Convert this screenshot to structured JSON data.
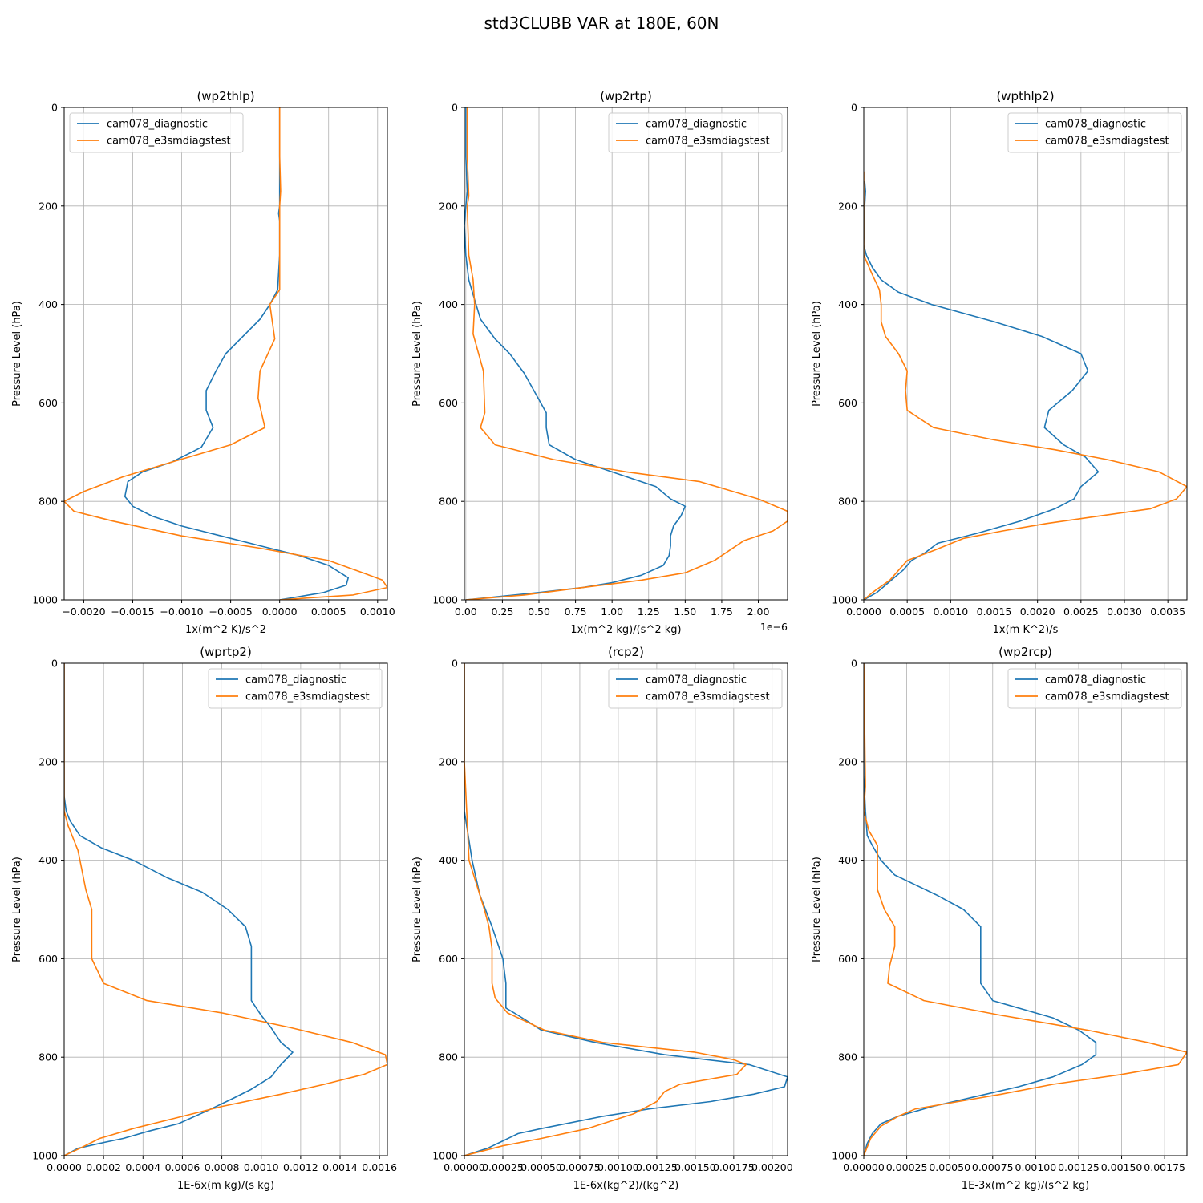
{
  "suptitle": "std3CLUBB VAR at 180E, 60N",
  "colors": {
    "diagnostic": "#1f77b4",
    "e3smdiagstest": "#ff7f0e",
    "grid": "#b0b0b0"
  },
  "chart_data": [
    {
      "type": "line",
      "title": "(wp2thlp)",
      "xlabel": "1x(m^2 K)/s^2",
      "ylabel": "Pressure Level (hPa)",
      "xlim": [
        -0.0022,
        0.0011
      ],
      "ylim": [
        1000,
        0
      ],
      "xticks": [
        -0.002,
        -0.0015,
        -0.001,
        -0.0005,
        0.0,
        0.0005,
        0.001
      ],
      "xtick_labels": [
        "−0.0020",
        "−0.0015",
        "−0.0010",
        "−0.0005",
        "0.0000",
        "0.0005",
        "0.0010"
      ],
      "yticks": [
        0,
        200,
        400,
        600,
        800,
        1000
      ],
      "ytick_labels": [
        "0",
        "200",
        "400",
        "600",
        "800",
        "1000"
      ],
      "legend_loc": "upper left",
      "series": [
        {
          "name": "cam078_diagnostic",
          "x": [
            0.0,
            0.0,
            0.0,
            -1e-05,
            0.0,
            0.0,
            -2e-05,
            -0.0001,
            -0.0002,
            -0.0004,
            -0.00055,
            -0.00065,
            -0.00075,
            -0.00075,
            -0.00068,
            -0.0008,
            -0.0011,
            -0.0014,
            -0.00155,
            -0.00158,
            -0.0015,
            -0.0013,
            -0.001,
            -0.0006,
            -0.0002,
            0.0002,
            0.0005,
            0.0007,
            0.00068,
            0.00045,
            0.0
          ],
          "y": [
            0,
            100,
            200,
            215,
            230,
            300,
            370,
            400,
            430,
            470,
            500,
            535,
            575,
            615,
            650,
            690,
            720,
            740,
            760,
            790,
            810,
            830,
            850,
            870,
            890,
            910,
            930,
            955,
            970,
            985,
            1000
          ]
        },
        {
          "name": "cam078_e3smdiagstest",
          "x": [
            0.0,
            0.0,
            1e-05,
            0.0,
            0.0,
            0.0,
            -0.0001,
            -5e-05,
            -0.0002,
            -0.00022,
            -0.00015,
            -0.0005,
            -0.0011,
            -0.0016,
            -0.002,
            -0.0022,
            -0.0021,
            -0.0017,
            -0.001,
            -0.0002,
            0.0005,
            0.00085,
            0.00105,
            0.0011,
            0.00075,
            0.0
          ],
          "y": [
            0,
            100,
            170,
            200,
            300,
            370,
            400,
            470,
            535,
            590,
            650,
            685,
            720,
            750,
            780,
            800,
            820,
            840,
            870,
            895,
            920,
            945,
            960,
            975,
            990,
            1000
          ]
        }
      ]
    },
    {
      "type": "line",
      "title": "(wp2rtp)",
      "xlabel": "1x(m^2 kg)/(s^2 kg)",
      "ylabel": "Pressure Level (hPa)",
      "offset_text": "1e−6",
      "xlim": [
        -1e-08,
        2.2e-06
      ],
      "ylim": [
        1000,
        0
      ],
      "xticks": [
        0.0,
        2.5e-07,
        5e-07,
        7.5e-07,
        1e-06,
        1.25e-06,
        1.5e-06,
        1.75e-06,
        2e-06
      ],
      "xtick_labels": [
        "0.00",
        "0.25",
        "0.50",
        "0.75",
        "1.00",
        "1.25",
        "1.50",
        "1.75",
        "2.00"
      ],
      "yticks": [
        0,
        200,
        400,
        600,
        800,
        1000
      ],
      "ytick_labels": [
        "0",
        "200",
        "400",
        "600",
        "800",
        "1000"
      ],
      "legend_loc": "upper right",
      "series": [
        {
          "name": "cam078_diagnostic",
          "x": [
            0.0,
            0.0,
            1e-08,
            0.0,
            -1e-08,
            0.0,
            2e-08,
            5e-08,
            1e-07,
            2e-07,
            3e-07,
            4e-07,
            5.5e-07,
            5.5e-07,
            5.7e-07,
            7.5e-07,
            1e-06,
            1.3e-06,
            1.4e-06,
            1.5e-06,
            1.47e-06,
            1.42e-06,
            1.4e-06,
            1.4e-06,
            1.39e-06,
            1.35e-06,
            1.2e-06,
            1e-06,
            8e-07,
            5e-07,
            0.0
          ],
          "y": [
            0,
            100,
            170,
            200,
            240,
            300,
            350,
            380,
            430,
            470,
            500,
            540,
            620,
            650,
            685,
            715,
            740,
            770,
            795,
            810,
            830,
            850,
            870,
            890,
            910,
            930,
            950,
            965,
            975,
            985,
            1000
          ]
        },
        {
          "name": "cam078_e3smdiagstest",
          "x": [
            1e-08,
            1e-08,
            2e-08,
            1e-08,
            2e-08,
            5e-08,
            6e-08,
            5e-08,
            1.2e-07,
            1.3e-07,
            1e-07,
            2e-07,
            6e-07,
            1.1e-06,
            1.6e-06,
            2e-06,
            2.2e-06,
            2.2e-06,
            2.1e-06,
            1.9e-06,
            1.8e-06,
            1.7e-06,
            1.5e-06,
            1.2e-06,
            8e-07,
            4e-07,
            0.0
          ],
          "y": [
            0,
            100,
            180,
            200,
            300,
            350,
            400,
            460,
            535,
            620,
            650,
            685,
            715,
            740,
            760,
            795,
            820,
            840,
            860,
            880,
            900,
            920,
            945,
            960,
            975,
            990,
            1000
          ]
        }
      ]
    },
    {
      "type": "line",
      "title": "(wpthlp2)",
      "xlabel": "1x(m K^2)/s",
      "ylabel": "Pressure Level (hPa)",
      "xlim": [
        0.0,
        0.00372
      ],
      "ylim": [
        1000,
        0
      ],
      "xticks": [
        0.0,
        0.0005,
        0.001,
        0.0015,
        0.002,
        0.0025,
        0.003,
        0.0035
      ],
      "xtick_labels": [
        "0.0000",
        "0.0005",
        "0.0010",
        "0.0015",
        "0.0020",
        "0.0025",
        "0.0030",
        "0.0035"
      ],
      "yticks": [
        0,
        200,
        400,
        600,
        800,
        1000
      ],
      "ytick_labels": [
        "0",
        "200",
        "400",
        "600",
        "800",
        "1000"
      ],
      "legend_loc": "upper right",
      "series": [
        {
          "name": "cam078_diagnostic",
          "x": [
            1e-05,
            2e-05,
            1e-05,
            0.0,
            3e-05,
            0.0001,
            0.0002,
            0.0004,
            0.00078,
            0.0015,
            0.00205,
            0.0025,
            0.00258,
            0.0024,
            0.00213,
            0.00208,
            0.0023,
            0.00255,
            0.0027,
            0.0025,
            0.00242,
            0.0022,
            0.0018,
            0.0013,
            0.00085,
            0.0007,
            0.00055,
            0.00045,
            0.00035,
            0.00025,
            0.00015,
            5e-05,
            0.0
          ],
          "y": [
            150,
            170,
            200,
            280,
            300,
            325,
            350,
            375,
            400,
            435,
            465,
            500,
            535,
            575,
            615,
            650,
            685,
            710,
            740,
            770,
            795,
            815,
            840,
            865,
            885,
            905,
            920,
            940,
            955,
            970,
            985,
            995,
            1000
          ]
        },
        {
          "name": "cam078_e3smdiagstest",
          "x": [
            0.0,
            0.0,
            0.0,
            0.0001,
            0.00018,
            0.0002,
            0.0002,
            0.00025,
            0.0004,
            0.0005,
            0.00048,
            0.0005,
            0.0008,
            0.0015,
            0.0022,
            0.0028,
            0.0034,
            0.00372,
            0.0036,
            0.0033,
            0.0027,
            0.0021,
            0.0016,
            0.00115,
            0.0008,
            0.0005,
            0.0004,
            0.0003,
            0.0001,
            0.0
          ],
          "y": [
            130,
            200,
            300,
            340,
            370,
            400,
            435,
            465,
            500,
            535,
            575,
            615,
            650,
            675,
            695,
            715,
            740,
            770,
            795,
            815,
            830,
            845,
            860,
            875,
            900,
            920,
            940,
            960,
            985,
            1000
          ]
        }
      ]
    },
    {
      "type": "line",
      "title": "(wprtp2)",
      "xlabel": "1E-6x(m kg)/(s kg)",
      "ylabel": "Pressure Level (hPa)",
      "xlim": [
        0.0,
        0.00164
      ],
      "ylim": [
        1000,
        0
      ],
      "xticks": [
        0.0,
        0.0002,
        0.0004,
        0.0006,
        0.0008,
        0.001,
        0.0012,
        0.0014,
        0.0016
      ],
      "xtick_labels": [
        "0.0000",
        "0.0002",
        "0.0004",
        "0.0006",
        "0.0008",
        "0.0010",
        "0.0012",
        "0.0014",
        "0.0016"
      ],
      "yticks": [
        0,
        200,
        400,
        600,
        800,
        1000
      ],
      "ytick_labels": [
        "0",
        "200",
        "400",
        "600",
        "800",
        "1000"
      ],
      "legend_loc": "upper right",
      "series": [
        {
          "name": "cam078_diagnostic",
          "x": [
            0.0,
            0.0,
            0.0,
            1e-05,
            3e-05,
            8e-05,
            0.00019,
            0.00035,
            0.00052,
            0.0007,
            0.00083,
            0.00092,
            0.00095,
            0.00095,
            0.00095,
            0.00095,
            0.001,
            0.00105,
            0.0011,
            0.00116,
            0.0011,
            0.00105,
            0.00095,
            0.00085,
            0.00072,
            0.00058,
            0.00043,
            0.0003,
            0.00018,
            7e-05,
            0.0
          ],
          "y": [
            0,
            200,
            270,
            300,
            320,
            350,
            375,
            400,
            435,
            465,
            500,
            535,
            575,
            615,
            650,
            685,
            715,
            740,
            770,
            790,
            815,
            840,
            865,
            885,
            910,
            935,
            950,
            965,
            975,
            985,
            1000
          ]
        },
        {
          "name": "cam078_e3smdiagstest",
          "x": [
            0.0,
            0.0,
            0.0,
            2e-05,
            5e-05,
            7e-05,
            8e-05,
            0.00011,
            0.00014,
            0.00014,
            0.00014,
            0.0002,
            0.00042,
            0.0008,
            0.00115,
            0.00146,
            0.00163,
            0.00164,
            0.00152,
            0.00132,
            0.0011,
            0.0008,
            0.00055,
            0.00035,
            0.00018,
            8e-05,
            0.0
          ],
          "y": [
            0,
            200,
            300,
            330,
            360,
            380,
            400,
            460,
            500,
            535,
            600,
            650,
            685,
            710,
            740,
            770,
            795,
            815,
            835,
            855,
            875,
            900,
            925,
            945,
            965,
            985,
            1000
          ]
        }
      ]
    },
    {
      "type": "line",
      "title": "(rcp2)",
      "xlabel": "1E-6x(kg^2)/(kg^2)",
      "ylabel": "Pressure Level (hPa)",
      "xlim": [
        0.0,
        0.0021
      ],
      "ylim": [
        1000,
        0
      ],
      "xticks": [
        0.0,
        0.00025,
        0.0005,
        0.00075,
        0.001,
        0.00125,
        0.0015,
        0.00175,
        0.002
      ],
      "xtick_labels": [
        "0.00000",
        "0.00025",
        "0.00050",
        "0.00075",
        "0.00100",
        "0.00125",
        "0.00150",
        "0.00175",
        "0.00200"
      ],
      "yticks": [
        0,
        200,
        400,
        600,
        800,
        1000
      ],
      "ytick_labels": [
        "0",
        "200",
        "400",
        "600",
        "800",
        "1000"
      ],
      "legend_loc": "upper right",
      "series": [
        {
          "name": "cam078_diagnostic",
          "x": [
            0.0,
            0.0,
            1e-05,
            3e-05,
            5e-05,
            0.0001,
            0.00018,
            0.00025,
            0.00027,
            0.00027,
            0.00027,
            0.00035,
            0.0005,
            0.00085,
            0.0013,
            0.00185,
            0.0021,
            0.00208,
            0.00188,
            0.0016,
            0.0012,
            0.0009,
            0.0005,
            0.00035,
            0.00025,
            0.00015,
            0.0
          ],
          "y": [
            0,
            300,
            320,
            360,
            400,
            470,
            535,
            600,
            650,
            685,
            700,
            715,
            745,
            770,
            795,
            815,
            840,
            860,
            875,
            890,
            905,
            920,
            945,
            955,
            970,
            985,
            1000
          ]
        },
        {
          "name": "cam078_e3smdiagstest",
          "x": [
            0.0,
            0.0,
            3e-05,
            8e-05,
            0.00013,
            0.00016,
            0.00018,
            0.00018,
            0.0002,
            0.00028,
            0.00052,
            0.0009,
            0.0012,
            0.0015,
            0.00175,
            0.00183,
            0.00177,
            0.0014,
            0.0013,
            0.00125,
            0.0011,
            0.0008,
            0.0005,
            0.00025,
            0.0
          ],
          "y": [
            0,
            200,
            400,
            450,
            500,
            535,
            580,
            650,
            680,
            710,
            745,
            770,
            780,
            790,
            805,
            815,
            835,
            855,
            870,
            890,
            915,
            945,
            965,
            980,
            1000
          ]
        }
      ]
    },
    {
      "type": "line",
      "title": "(wp2rcp)",
      "xlabel": "1E-3x(m^2 kg)/(s^2 kg)",
      "ylabel": "Pressure Level (hPa)",
      "xlim": [
        0.0,
        0.00188
      ],
      "ylim": [
        1000,
        0
      ],
      "xticks": [
        0.0,
        0.00025,
        0.0005,
        0.00075,
        0.001,
        0.00125,
        0.0015,
        0.00175
      ],
      "xtick_labels": [
        "0.00000",
        "0.00025",
        "0.00050",
        "0.00075",
        "0.00100",
        "0.00125",
        "0.00150",
        "0.00175"
      ],
      "yticks": [
        0,
        200,
        400,
        600,
        800,
        1000
      ],
      "ytick_labels": [
        "0",
        "200",
        "400",
        "600",
        "800",
        "1000"
      ],
      "legend_loc": "upper right",
      "series": [
        {
          "name": "cam078_diagnostic",
          "x": [
            0.0,
            0.0,
            1e-05,
            2e-05,
            5e-05,
            0.0001,
            0.00018,
            0.00042,
            0.00058,
            0.00068,
            0.00068,
            0.00068,
            0.00075,
            0.0011,
            0.00125,
            0.00135,
            0.00135,
            0.00127,
            0.0011,
            0.0009,
            0.00065,
            0.0004,
            0.0002,
            0.0001,
            5e-05,
            2e-05,
            0.0
          ],
          "y": [
            0,
            230,
            300,
            350,
            370,
            400,
            430,
            470,
            500,
            535,
            600,
            650,
            685,
            720,
            745,
            770,
            795,
            815,
            840,
            860,
            880,
            900,
            920,
            935,
            955,
            975,
            1000
          ]
        },
        {
          "name": "cam078_e3smdiagstest",
          "x": [
            0.0,
            1e-05,
            0.0,
            3e-05,
            8e-05,
            8e-05,
            8e-05,
            0.00012,
            0.00018,
            0.00018,
            0.00015,
            0.00014,
            0.00035,
            0.0008,
            0.0013,
            0.00165,
            0.00188,
            0.00183,
            0.0015,
            0.0011,
            0.0008,
            0.00055,
            0.0003,
            0.0002,
            0.0001,
            4e-05,
            0.0
          ],
          "y": [
            0,
            250,
            300,
            340,
            370,
            400,
            460,
            500,
            535,
            575,
            615,
            650,
            685,
            715,
            745,
            770,
            790,
            815,
            835,
            855,
            875,
            890,
            905,
            920,
            940,
            965,
            1000
          ]
        }
      ]
    }
  ]
}
